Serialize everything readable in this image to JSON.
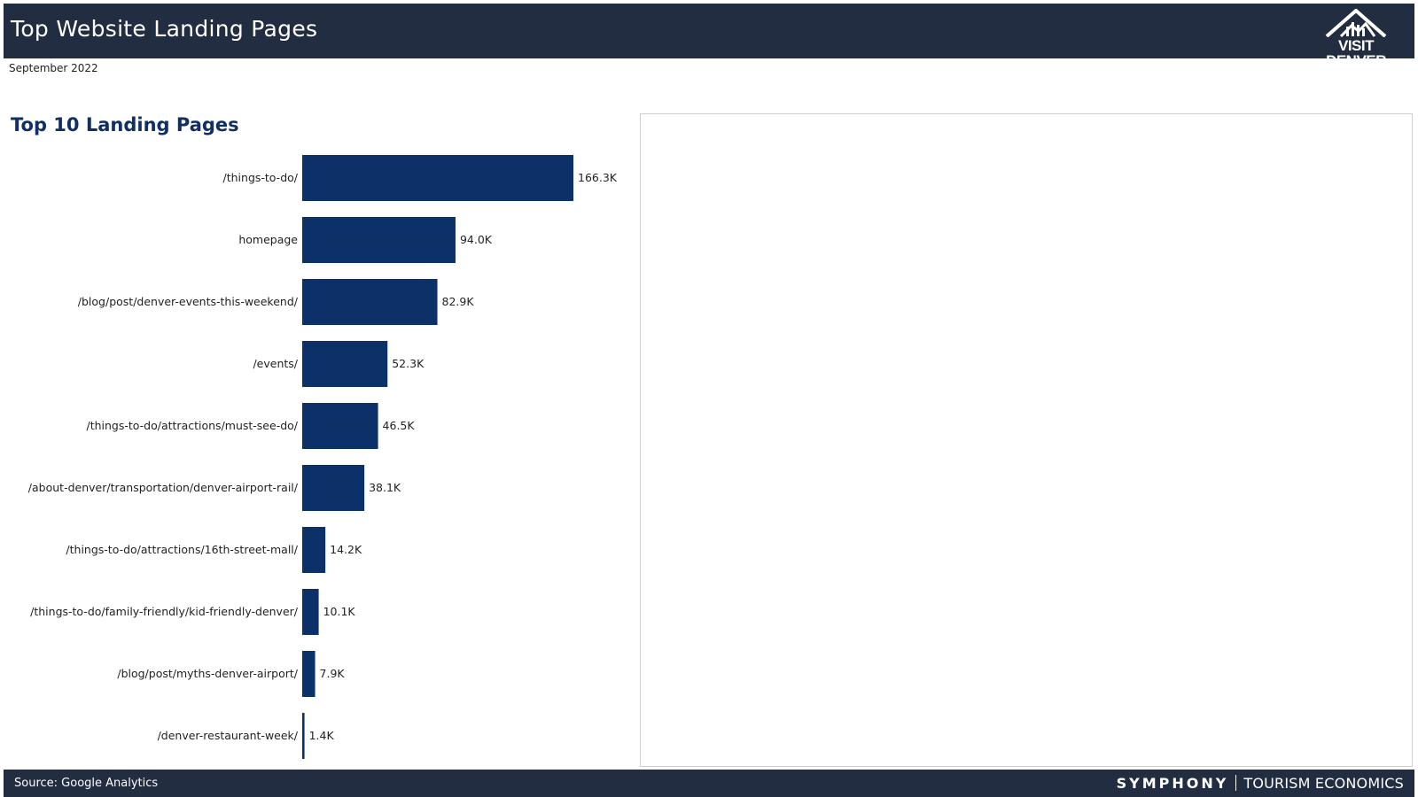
{
  "header": {
    "title": "Top Website Landing Pages",
    "logo_text": "VISIT DENVER"
  },
  "subtitle": "September 2022",
  "chart_title": "Top 10 Landing Pages",
  "colors": {
    "bar": "#0b3168",
    "header_bg": "#222d41"
  },
  "chart_data": {
    "type": "bar",
    "orientation": "horizontal",
    "title": "Top 10 Landing Pages",
    "categories": [
      "/things-to-do/",
      "homepage",
      "/blog/post/denver-events-this-weekend/",
      "/events/",
      "/things-to-do/attractions/must-see-do/",
      "/about-denver/transportation/denver-airport-rail/",
      "/things-to-do/attractions/16th-street-mall/",
      "/things-to-do/family-friendly/kid-friendly-denver/",
      "/blog/post/myths-denver-airport/",
      "/denver-restaurant-week/"
    ],
    "values": [
      166300,
      94000,
      82900,
      52300,
      46500,
      38100,
      14200,
      10100,
      7900,
      1400
    ],
    "value_labels": [
      "166.3K",
      "94.0K",
      "82.9K",
      "52.3K",
      "46.5K",
      "38.1K",
      "14.2K",
      "10.1K",
      "7.9K",
      "1.4K"
    ],
    "xlabel": "",
    "ylabel": "",
    "xlim": [
      0,
      166300
    ]
  },
  "footer": {
    "source": "Source: Google Analytics",
    "brand_main": "SYMPHONY",
    "brand_sub": "TOURISM ECONOMICS"
  }
}
